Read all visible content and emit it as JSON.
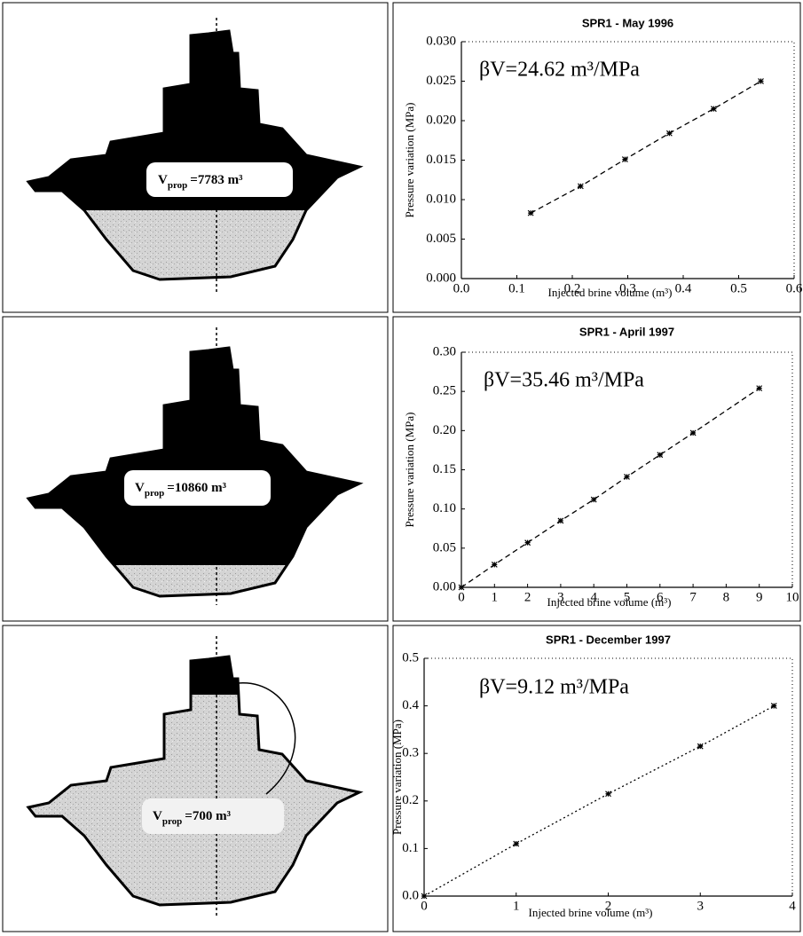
{
  "diagrams": [
    {
      "symbol": "V",
      "subscript": "prop",
      "value": "=7783 m³"
    },
    {
      "symbol": "V",
      "subscript": "prop",
      "value": "=10860 m³"
    },
    {
      "symbol": "V",
      "subscript": "prop",
      "value": "=700 m³"
    }
  ],
  "chart_data": [
    {
      "type": "line",
      "title": "SPR1 - May 1996",
      "annotation": "βV=24.62 m³/MPa",
      "x_label": "Injected brine volume (m³)",
      "y_label": "Pressure variation (MPa)",
      "x": [
        0.125,
        0.215,
        0.295,
        0.375,
        0.455,
        0.54
      ],
      "values": [
        0.0083,
        0.0117,
        0.0151,
        0.0184,
        0.0215,
        0.025
      ],
      "color": "#000000",
      "line_style": "dashed",
      "xlim": [
        0,
        0.6
      ],
      "xticks": [
        {
          "value": 0,
          "label": "0.0"
        },
        0.1,
        0.2,
        0.3,
        0.4,
        0.5,
        0.6
      ],
      "ylim": [
        0,
        0.03
      ],
      "yticks": [
        {
          "value": 0,
          "label": "0.000"
        },
        {
          "value": 0.005,
          "label": "0.005"
        },
        {
          "value": 0.01,
          "label": "0.010"
        },
        {
          "value": 0.015,
          "label": "0.015"
        },
        {
          "value": 0.02,
          "label": "0.020"
        },
        {
          "value": 0.025,
          "label": "0.025"
        },
        {
          "value": 0.03,
          "label": "0.030"
        }
      ]
    },
    {
      "type": "line",
      "title": "SPR1 - April 1997",
      "annotation": "βV=35.46 m³/MPa",
      "x_label": "Injected brine volume (m³)",
      "y_label": "Pressure variation (MPa)",
      "x": [
        0,
        1,
        2,
        3,
        4,
        5,
        6,
        7,
        9
      ],
      "values": [
        0,
        0.029,
        0.057,
        0.085,
        0.112,
        0.141,
        0.169,
        0.197,
        0.254
      ],
      "color": "#000000",
      "line_style": "dashed",
      "xlim": [
        0,
        10
      ],
      "xticks": [
        0,
        1,
        2,
        3,
        4,
        5,
        6,
        7,
        8,
        9,
        10
      ],
      "ylim": [
        0,
        0.3
      ],
      "yticks": [
        {
          "value": 0,
          "label": "0.00"
        },
        0.05,
        {
          "value": 0.1,
          "label": "0.10"
        },
        0.15,
        {
          "value": 0.2,
          "label": "0.20"
        },
        0.25,
        {
          "value": 0.3,
          "label": "0.30"
        }
      ]
    },
    {
      "type": "line",
      "title": "SPR1 - December 1997",
      "annotation": "βV=9.12 m³/MPa",
      "x_label": "Injected brine volume (m³)",
      "y_label": "Pressure variation (MPa)",
      "x": [
        0,
        1,
        2,
        3,
        3.8
      ],
      "values": [
        0,
        0.11,
        0.215,
        0.315,
        0.4
      ],
      "color": "#000000",
      "line_style": "dotted",
      "xlim": [
        0,
        4
      ],
      "xticks": [
        0,
        1,
        2,
        3,
        4
      ],
      "ylim": [
        0,
        0.5
      ],
      "yticks": [
        {
          "value": 0,
          "label": "0.0"
        },
        0.1,
        0.2,
        0.3,
        0.4,
        0.5
      ]
    }
  ]
}
